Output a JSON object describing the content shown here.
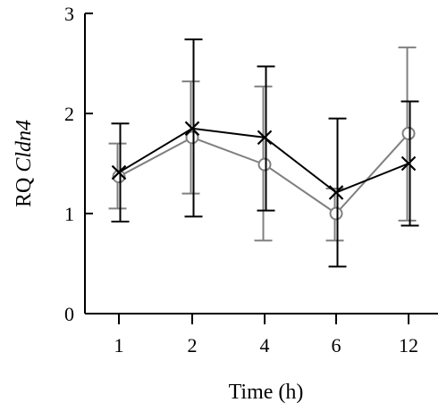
{
  "chart_data": {
    "type": "line",
    "xlabel": "Time (h)",
    "ylabel_prefix": "RQ ",
    "ylabel_gene": "Cldn4",
    "categories": [
      "1",
      "2",
      "4",
      "6",
      "12"
    ],
    "ylim": [
      0,
      3
    ],
    "yticks": [
      "0",
      "1",
      "2",
      "3"
    ],
    "grid": false,
    "series": [
      {
        "marker": "circle",
        "color": "#808080",
        "values": [
          1.37,
          1.76,
          1.49,
          1.0,
          1.8
        ],
        "err_low": [
          1.05,
          1.2,
          0.73,
          0.73,
          0.93
        ],
        "err_high": [
          1.7,
          2.32,
          2.27,
          1.25,
          2.66
        ]
      },
      {
        "marker": "x",
        "color": "#000000",
        "values": [
          1.41,
          1.85,
          1.76,
          1.21,
          1.5
        ],
        "err_low": [
          0.92,
          0.97,
          1.03,
          0.47,
          0.88
        ],
        "err_high": [
          1.9,
          2.74,
          2.47,
          1.95,
          2.12
        ]
      }
    ]
  }
}
